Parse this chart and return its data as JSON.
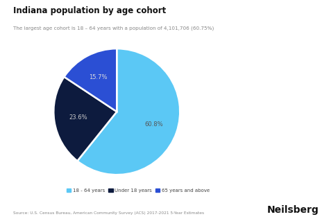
{
  "title": "Indiana population by age cohort",
  "subtitle": "The largest age cohort is 18 – 64 years with a population of 4,101,706 (60.75%)",
  "slices": [
    60.8,
    23.6,
    15.7
  ],
  "labels": [
    "18 - 64 years",
    "Under 18 years",
    "65 years and above"
  ],
  "colors": [
    "#5bc8f5",
    "#0d1b3e",
    "#2b4fd4"
  ],
  "pct_labels": [
    "60.8%",
    "23.6%",
    "15.7%"
  ],
  "pct_label_colors": [
    "#555555",
    "#cccccc",
    "#dddddd"
  ],
  "legend_colors": [
    "#5bc8f5",
    "#0d1b3e",
    "#2b4fd4"
  ],
  "source": "Source: U.S. Census Bureau, American Community Survey (ACS) 2017-2021 5-Year Estimates",
  "brand": "Neilsberg",
  "bg_color": "#ffffff",
  "start_angle": 90
}
